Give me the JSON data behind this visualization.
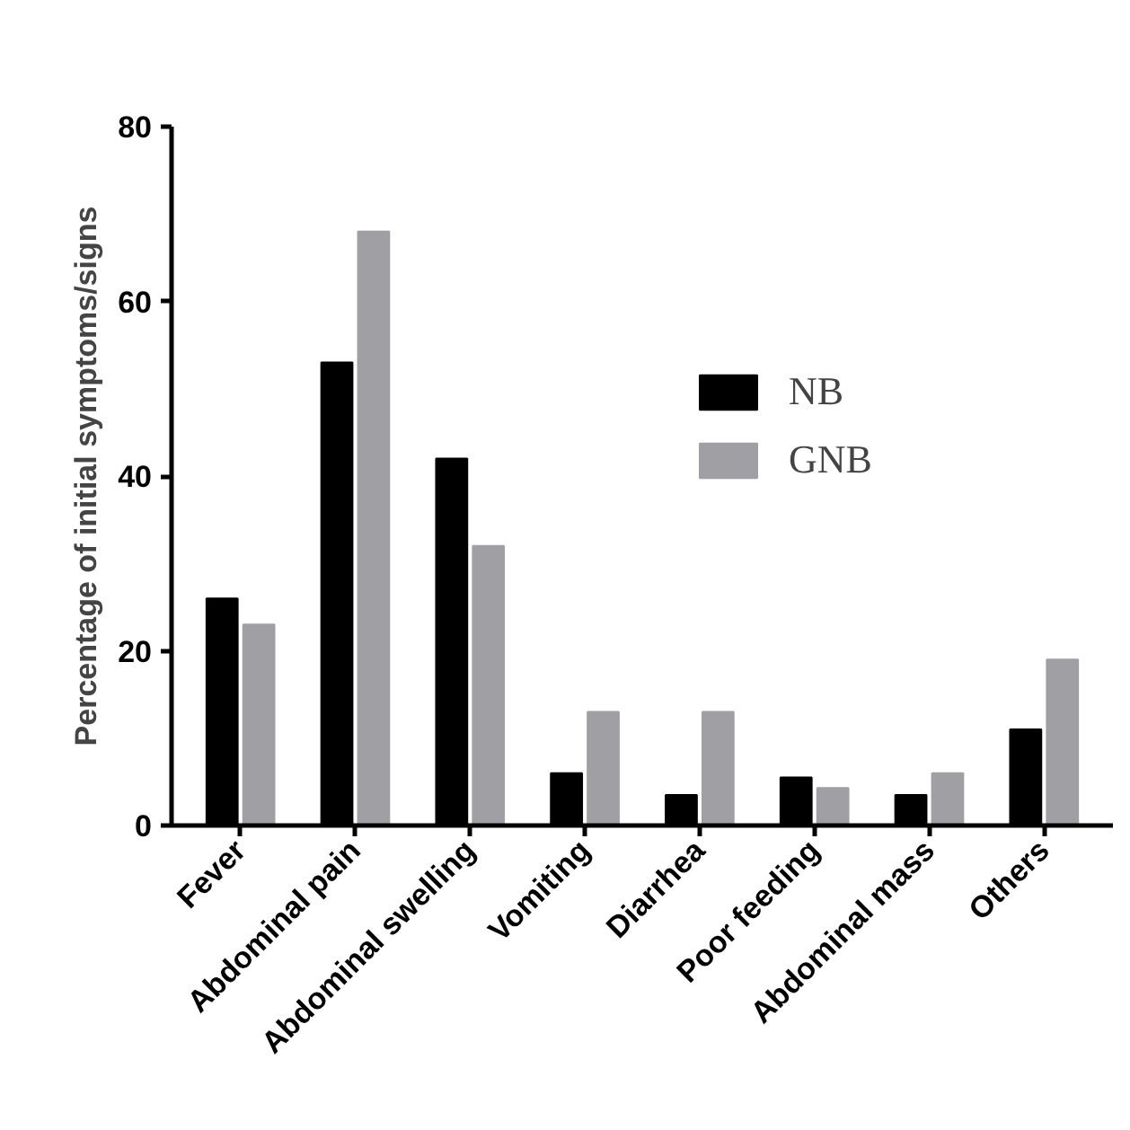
{
  "chart_data": {
    "type": "bar",
    "ylabel": "Percentage of initial symptoms/signs",
    "categories": [
      "Fever",
      "Abdominal pain",
      "Abdominal swelling",
      "Vomiting",
      "Diarrhea",
      "Poor feeding",
      "Abdominal mass",
      "Others"
    ],
    "series": [
      {
        "name": "NB",
        "color": "#000000",
        "values": [
          26,
          53,
          42,
          6,
          3.5,
          5.5,
          3.5,
          11
        ]
      },
      {
        "name": "GNB",
        "color": "#a0a0a4",
        "values": [
          23,
          68,
          32,
          13,
          13,
          4.3,
          6,
          19
        ]
      }
    ],
    "ylim": [
      0,
      80
    ],
    "yticks": [
      0,
      20,
      40,
      60,
      80
    ],
    "grid": false,
    "legend": "top right"
  }
}
